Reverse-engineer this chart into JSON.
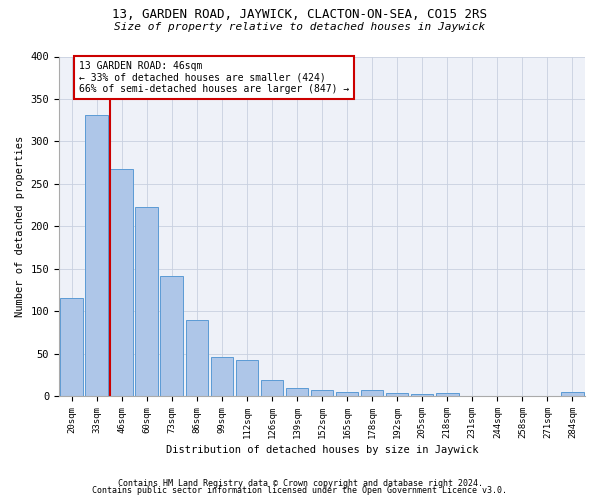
{
  "title1": "13, GARDEN ROAD, JAYWICK, CLACTON-ON-SEA, CO15 2RS",
  "title2": "Size of property relative to detached houses in Jaywick",
  "xlabel": "Distribution of detached houses by size in Jaywick",
  "ylabel": "Number of detached properties",
  "categories": [
    "20sqm",
    "33sqm",
    "46sqm",
    "60sqm",
    "73sqm",
    "86sqm",
    "99sqm",
    "112sqm",
    "126sqm",
    "139sqm",
    "152sqm",
    "165sqm",
    "178sqm",
    "192sqm",
    "205sqm",
    "218sqm",
    "231sqm",
    "244sqm",
    "258sqm",
    "271sqm",
    "284sqm"
  ],
  "values": [
    116,
    331,
    267,
    223,
    142,
    90,
    46,
    43,
    19,
    10,
    7,
    5,
    7,
    4,
    3,
    4,
    0,
    0,
    0,
    0,
    5
  ],
  "bar_color": "#aec6e8",
  "bar_edge_color": "#5b9bd5",
  "highlight_bar_index": 2,
  "highlight_line_color": "#cc0000",
  "annotation_line1": "13 GARDEN ROAD: 46sqm",
  "annotation_line2": "← 33% of detached houses are smaller (424)",
  "annotation_line3": "66% of semi-detached houses are larger (847) →",
  "annotation_box_color": "#cc0000",
  "ylim": [
    0,
    400
  ],
  "yticks": [
    0,
    50,
    100,
    150,
    200,
    250,
    300,
    350,
    400
  ],
  "grid_color": "#c8d0e0",
  "bg_color": "#eef1f8",
  "footer1": "Contains HM Land Registry data © Crown copyright and database right 2024.",
  "footer2": "Contains public sector information licensed under the Open Government Licence v3.0."
}
